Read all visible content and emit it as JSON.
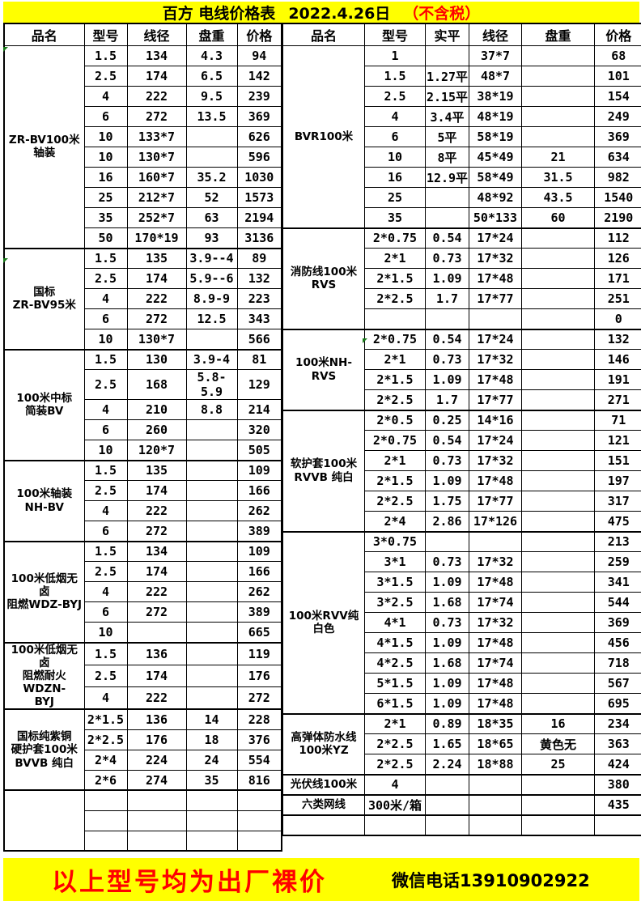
{
  "title": {
    "text": "百方 电线价格表",
    "date": "2022.4.26日",
    "tax_note": "（不含税）"
  },
  "left_table": {
    "headers": [
      "品名",
      "型号",
      "线径",
      "盘重",
      "价格"
    ],
    "groups": [
      {
        "name": "ZR-BV100米\n轴装",
        "rows": [
          [
            "1.5",
            "134",
            "4.3",
            "94"
          ],
          [
            "2.5",
            "174",
            "6.5",
            "142"
          ],
          [
            "4",
            "222",
            "9.5",
            "239"
          ],
          [
            "6",
            "272",
            "13.5",
            "369"
          ],
          [
            "10",
            "133*7",
            "",
            "626"
          ],
          [
            "10",
            "130*7",
            "",
            "596"
          ],
          [
            "16",
            "160*7",
            "35.2",
            "1030"
          ],
          [
            "25",
            "212*7",
            "52",
            "1573"
          ],
          [
            "35",
            "252*7",
            "63",
            "2194"
          ],
          [
            "50",
            "170*19",
            "93",
            "3136"
          ]
        ]
      },
      {
        "name": "国标\nZR-BV95米",
        "rows": [
          [
            "1.5",
            "135",
            "3.9--4",
            "89"
          ],
          [
            "2.5",
            "174",
            "5.9--6",
            "132"
          ],
          [
            "4",
            "222",
            "8.9-9",
            "223"
          ],
          [
            "6",
            "272",
            "12.5",
            "343"
          ],
          [
            "10",
            "130*7",
            "",
            "566"
          ]
        ]
      },
      {
        "name": "100米中标\n简装BV",
        "rows": [
          [
            "1.5",
            "130",
            "3.9-4",
            "81"
          ],
          [
            "2.5",
            "168",
            "5.8-5.9",
            "129"
          ],
          [
            "4",
            "210",
            "8.8",
            "214"
          ],
          [
            "6",
            "260",
            "",
            "320"
          ],
          [
            "10",
            "120*7",
            "",
            "505"
          ]
        ]
      },
      {
        "name": "100米轴装\nNH-BV",
        "rows": [
          [
            "1.5",
            "135",
            "",
            "109"
          ],
          [
            "2.5",
            "174",
            "",
            "166"
          ],
          [
            "4",
            "222",
            "",
            "262"
          ],
          [
            "6",
            "272",
            "",
            "389"
          ]
        ]
      },
      {
        "name": "100米低烟无卤\n阻燃WDZ-BYJ",
        "rows": [
          [
            "1.5",
            "134",
            "",
            "109"
          ],
          [
            "2.5",
            "174",
            "",
            "166"
          ],
          [
            "4",
            "222",
            "",
            "262"
          ],
          [
            "6",
            "272",
            "",
            "389"
          ],
          [
            "10",
            "",
            "",
            "665"
          ]
        ]
      },
      {
        "name": "100米低烟无卤\n阻燃耐火WDZN-\nBYJ",
        "rows": [
          [
            "1.5",
            "136",
            "",
            "119"
          ],
          [
            "2.5",
            "174",
            "",
            "176"
          ],
          [
            "4",
            "222",
            "",
            "272"
          ]
        ]
      },
      {
        "name": "国标纯紫铜\n硬护套100米\nBVVB 纯白",
        "rows": [
          [
            "2*1.5",
            "136",
            "14",
            "228"
          ],
          [
            "2*2.5",
            "176",
            "18",
            "376"
          ],
          [
            "2*4",
            "224",
            "24",
            "554"
          ],
          [
            "2*6",
            "274",
            "35",
            "816"
          ]
        ]
      },
      {
        "name": "",
        "rows": [
          [
            "",
            "",
            "",
            ""
          ],
          [
            "",
            "",
            "",
            ""
          ],
          [
            "",
            "",
            "",
            ""
          ]
        ]
      }
    ]
  },
  "right_table": {
    "headers": [
      "品名",
      "型号",
      "实平",
      "线径",
      "盘重",
      "价格"
    ],
    "groups": [
      {
        "name": "BVR100米",
        "rows": [
          [
            "1",
            "",
            "37*7",
            "",
            "68"
          ],
          [
            "1.5",
            "1.27平",
            "48*7",
            "",
            "101"
          ],
          [
            "2.5",
            "2.15平",
            "38*19",
            "",
            "154"
          ],
          [
            "4",
            "3.4平",
            "48*19",
            "",
            "249"
          ],
          [
            "6",
            "5平",
            "58*19",
            "",
            "369"
          ],
          [
            "10",
            "8平",
            "45*49",
            "21",
            "634"
          ],
          [
            "16",
            "12.9平",
            "58*49",
            "31.5",
            "982"
          ],
          [
            "25",
            "",
            "48*92",
            "43.5",
            "1540"
          ],
          [
            "35",
            "",
            "50*133",
            "60",
            "2190"
          ]
        ]
      },
      {
        "name": "消防线100米\nRVS",
        "rows": [
          [
            "2*0.75",
            "0.54",
            "17*24",
            "",
            "112"
          ],
          [
            "2*1",
            "0.73",
            "17*32",
            "",
            "126"
          ],
          [
            "2*1.5",
            "1.09",
            "17*48",
            "",
            "171"
          ],
          [
            "2*2.5",
            "1.7",
            "17*77",
            "",
            "251"
          ],
          [
            "",
            "",
            "",
            "",
            "0"
          ]
        ]
      },
      {
        "name": "100米NH-\nRVS",
        "rows": [
          [
            "2*0.75",
            "0.54",
            "17*24",
            "",
            "132"
          ],
          [
            "2*1",
            "0.73",
            "17*32",
            "",
            "146"
          ],
          [
            "2*1.5",
            "1.09",
            "17*48",
            "",
            "191"
          ],
          [
            "2*2.5",
            "1.7",
            "17*77",
            "",
            "271"
          ]
        ]
      },
      {
        "name": "软护套100米\nRVVB 纯白",
        "rows": [
          [
            "2*0.5",
            "0.25",
            "14*16",
            "",
            "71"
          ],
          [
            "2*0.75",
            "0.54",
            "17*24",
            "",
            "121"
          ],
          [
            "2*1",
            "0.73",
            "17*32",
            "",
            "151"
          ],
          [
            "2*1.5",
            "1.09",
            "17*48",
            "",
            "197"
          ],
          [
            "2*2.5",
            "1.75",
            "17*77",
            "",
            "317"
          ],
          [
            "2*4",
            "2.86",
            "17*126",
            "",
            "475"
          ]
        ]
      },
      {
        "name": "100米RVV纯\n白色",
        "rows": [
          [
            "3*0.75",
            "",
            "",
            "",
            "213"
          ],
          [
            "3*1",
            "0.73",
            "17*32",
            "",
            "259"
          ],
          [
            "3*1.5",
            "1.09",
            "17*48",
            "",
            "341"
          ],
          [
            "3*2.5",
            "1.68",
            "17*74",
            "",
            "544"
          ],
          [
            "4*1",
            "0.73",
            "17*32",
            "",
            "369"
          ],
          [
            "4*1.5",
            "1.09",
            "17*48",
            "",
            "456"
          ],
          [
            "4*2.5",
            "1.68",
            "17*74",
            "",
            "718"
          ],
          [
            "5*1.5",
            "1.09",
            "17*48",
            "",
            "567"
          ],
          [
            "6*1.5",
            "1.09",
            "17*48",
            "",
            "695"
          ]
        ]
      },
      {
        "name": "高弹体防水线\n100米YZ",
        "rows": [
          [
            "2*1",
            "0.89",
            "18*35",
            "16",
            "234"
          ],
          [
            "2*2.5",
            "1.65",
            "18*65",
            "黄色无",
            "363"
          ],
          [
            "2*2.5",
            "2.24",
            "18*88",
            "25",
            "424"
          ]
        ]
      },
      {
        "name": "光伏线100米",
        "rows": [
          [
            "4",
            "",
            "",
            "",
            "380"
          ]
        ]
      },
      {
        "name": "六类网线",
        "rows": [
          [
            "300米/箱",
            "",
            "",
            "",
            "435"
          ]
        ]
      },
      {
        "name": "",
        "rows": [
          [
            "",
            "",
            "",
            "",
            ""
          ]
        ]
      }
    ]
  },
  "footer": {
    "main_text": "以上型号均为出厂裸价",
    "contact": "微信电话13910902922"
  },
  "colors": {
    "banner_bg": "#ffff00",
    "highlight_red": "#ff0000",
    "border": "#000000",
    "marker_green": "#1a7a1a"
  }
}
